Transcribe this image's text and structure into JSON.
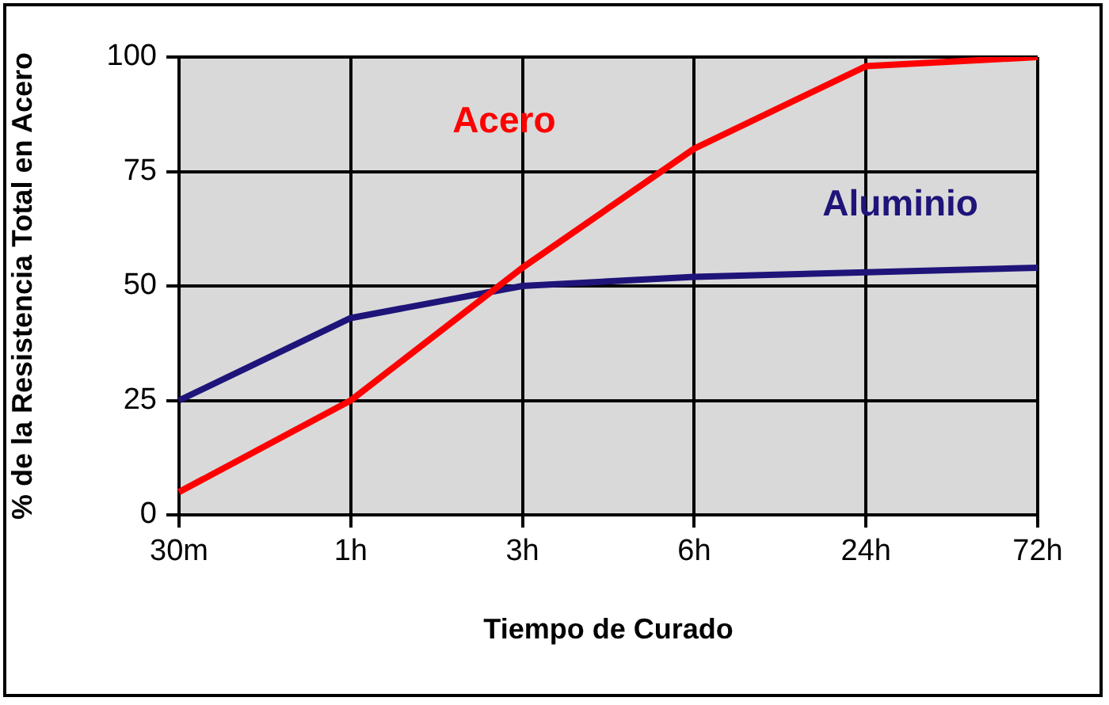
{
  "chart_data": {
    "type": "line",
    "xlabel": "Tiempo de Curado",
    "ylabel": "% de la Resistencia Total en Acero",
    "categories": [
      "30m",
      "1h",
      "3h",
      "6h",
      "24h",
      "72h"
    ],
    "series": [
      {
        "name": "Acero",
        "color": "#ff0000",
        "values": [
          5,
          25,
          54,
          80,
          98,
          100
        ]
      },
      {
        "name": "Aluminio",
        "color": "#1f1479",
        "values": [
          25,
          43,
          50,
          52,
          53,
          54
        ]
      }
    ],
    "ylim": [
      0,
      100
    ],
    "yticks": [
      0,
      25,
      50,
      75,
      100
    ],
    "grid": true,
    "marker": "none",
    "line_style": "solid"
  }
}
